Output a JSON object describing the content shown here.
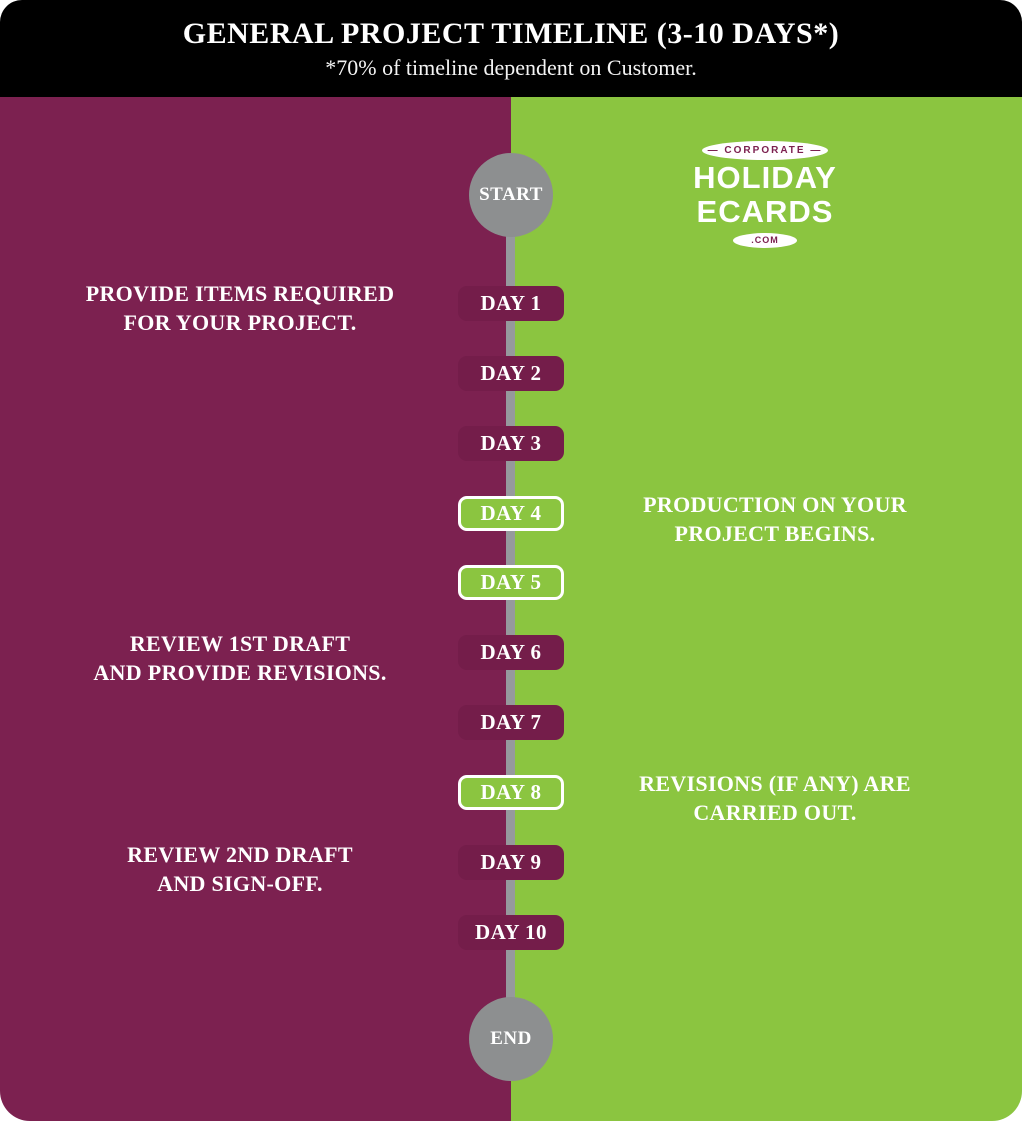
{
  "header": {
    "title": "GENERAL PROJECT TIMELINE (3-10 DAYS*)",
    "subtitle": "*70% of timeline dependent on Customer."
  },
  "logo": {
    "corporate": "CORPORATE",
    "holiday": "HOLIDAY",
    "ecards": "ECARDS",
    "com": ".COM"
  },
  "timeline": {
    "start": "START",
    "end": "END",
    "days": [
      {
        "label": "DAY 1",
        "type": "customer"
      },
      {
        "label": "DAY 2",
        "type": "customer"
      },
      {
        "label": "DAY 3",
        "type": "customer"
      },
      {
        "label": "DAY 4",
        "type": "production"
      },
      {
        "label": "DAY 5",
        "type": "production"
      },
      {
        "label": "DAY 6",
        "type": "customer"
      },
      {
        "label": "DAY 7",
        "type": "customer"
      },
      {
        "label": "DAY 8",
        "type": "production"
      },
      {
        "label": "DAY 9",
        "type": "customer"
      },
      {
        "label": "DAY 10",
        "type": "customer"
      }
    ]
  },
  "annotations": {
    "left": [
      {
        "text": "PROVIDE ITEMS REQUIRED\nFOR YOUR PROJECT."
      },
      {
        "text": "REVIEW 1ST DRAFT\nAND PROVIDE REVISIONS."
      },
      {
        "text": "REVIEW 2ND DRAFT\nAND SIGN-OFF."
      }
    ],
    "right": [
      {
        "text": "PRODUCTION ON YOUR\nPROJECT BEGINS."
      },
      {
        "text": "REVISIONS (IF ANY) ARE\nCARRIED OUT."
      }
    ]
  },
  "colors": {
    "maroon": "#7c2150",
    "green": "#8bc540",
    "gray": "#8d8f90",
    "header_bg": "#000000"
  }
}
